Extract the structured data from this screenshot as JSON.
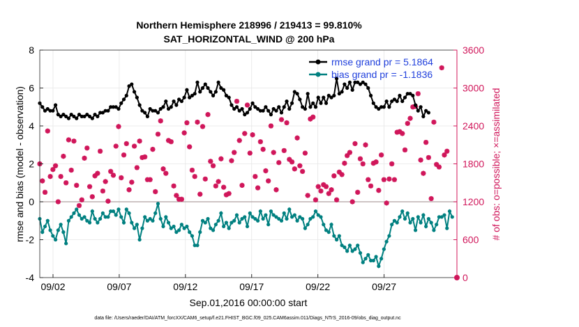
{
  "chart_data": {
    "type": "line",
    "title_line1": "Northern Hemisphere 218996 / 219413 = 99.810%",
    "title_line2": "SAT_HORIZONTAL_WIND @ 200 hPa",
    "xlabel": "Sep.01,2016 00:00:00 start",
    "ylabel_left": "rmse and bias (model - observation)",
    "ylabel_right": "# of obs: o=possible; ×=assimilated",
    "footer": "data file: /Users/raeder/DAI/ATM_forcXX/CAM6_setup/f.e21.FHIST_BGC.f09_025.CAM6assim.011/Diags_NTrS_2016-09/obs_diag_output.nc",
    "xlim": [
      0,
      31.5
    ],
    "ylim_left": [
      -4,
      8
    ],
    "ylim_right": [
      0,
      3600
    ],
    "xticks": [
      1,
      6,
      11,
      16,
      21,
      26
    ],
    "xtick_labels": [
      "09/02",
      "09/07",
      "09/12",
      "09/17",
      "09/22",
      "09/27"
    ],
    "yticks_left": [
      -4,
      -2,
      0,
      2,
      4,
      6,
      8
    ],
    "ytick_labels_left": [
      "-4",
      "-2",
      "0",
      "2",
      "4",
      "6",
      "8"
    ],
    "yticks_right": [
      0,
      600,
      1200,
      1800,
      2400,
      3000,
      3600
    ],
    "ytick_labels_right": [
      "0",
      "600",
      "1200",
      "1800",
      "2400",
      "3000",
      "3600"
    ],
    "colors": {
      "rmse": "#000000",
      "bias": "#008080",
      "obs": "#d0165a",
      "zero": "#b0a0a0",
      "legend_text": "#1f3fdc"
    },
    "series": [
      {
        "name": "rmse grand pr = 5.1864",
        "axis": "left",
        "values": [
          5.2,
          5.0,
          4.8,
          4.9,
          4.8,
          4.8,
          5.1,
          4.6,
          4.5,
          4.6,
          4.5,
          4.4,
          4.6,
          4.5,
          4.4,
          4.6,
          4.5,
          4.5,
          4.6,
          4.5,
          4.4,
          4.6,
          4.5,
          4.7,
          4.7,
          4.8,
          4.8,
          5.0,
          5.0,
          5.0,
          4.9,
          5.2,
          5.4,
          5.6,
          6.1,
          6.2,
          5.8,
          5.5,
          5.1,
          4.8,
          4.7,
          4.5,
          4.9,
          4.8,
          4.8,
          4.7,
          4.9,
          5.0,
          5.3,
          4.9,
          5.0,
          5.3,
          5.1,
          5.4,
          5.3,
          5.5,
          5.9,
          5.5,
          5.6,
          5.7,
          6.3,
          5.8,
          6.0,
          6.2,
          6.0,
          5.8,
          5.6,
          5.8,
          6.3,
          6.0,
          5.9,
          5.6,
          5.5,
          5.1,
          4.9,
          5.0,
          4.8,
          4.9,
          4.6,
          4.7,
          4.9,
          5.2,
          5.0,
          4.9,
          4.8,
          4.8,
          5.0,
          4.8,
          4.6,
          4.9,
          4.8,
          5.0,
          4.7,
          5.0,
          5.3,
          4.9,
          5.2,
          5.8,
          5.7,
          5.4,
          5.0,
          4.9,
          5.7,
          5.0,
          5.2,
          5.0,
          5.5,
          5.2,
          5.5,
          5.2,
          5.6,
          5.5,
          5.6,
          6.5,
          5.7,
          5.8,
          6.2,
          6.0,
          6.3,
          5.9,
          6.3,
          6.3,
          6.2,
          6.3,
          6.2,
          6.0,
          5.6,
          5.2,
          5.0,
          4.9,
          5.0,
          5.0,
          5.3,
          5.0,
          5.3,
          5.4,
          5.3,
          5.6,
          5.3,
          5.5,
          5.7,
          5.7,
          5.6,
          5.1,
          4.8,
          5.0,
          4.5,
          4.8,
          4.7
        ]
      },
      {
        "name": "bias grand pr = -1.1836",
        "axis": "left",
        "values": [
          -0.9,
          -1.6,
          -1.3,
          -1.0,
          -1.5,
          -1.8,
          -2.0,
          -1.5,
          -1.2,
          -1.6,
          -2.2,
          -1.0,
          -0.8,
          -0.6,
          -0.4,
          -0.7,
          -0.9,
          -0.8,
          -1.0,
          -1.1,
          -0.5,
          -0.9,
          -1.1,
          -0.9,
          -0.6,
          -0.8,
          -0.8,
          -0.5,
          -0.5,
          -0.7,
          -0.4,
          -0.8,
          -1.1,
          -0.4,
          -0.6,
          -1.1,
          -1.4,
          -1.2,
          -2.0,
          -1.4,
          -0.8,
          -1.0,
          -0.9,
          -1.0,
          -0.6,
          -0.1,
          -0.9,
          -1.3,
          -0.8,
          -1.1,
          -1.4,
          -1.3,
          -1.6,
          -1.5,
          -1.2,
          -1.4,
          -1.3,
          -1.6,
          -1.8,
          -2.3,
          -2.3,
          -1.6,
          -1.0,
          -1.1,
          -0.9,
          -1.4,
          -1.5,
          -1.2,
          -1.0,
          -0.6,
          -1.3,
          -1.1,
          -1.4,
          -1.1,
          -1.0,
          -0.7,
          -1.1,
          -0.9,
          -0.8,
          -1.3,
          -0.6,
          -0.8,
          -0.9,
          -1.0,
          -0.5,
          -0.9,
          -0.7,
          -1.2,
          -0.5,
          -0.7,
          -0.8,
          -0.9,
          -1.0,
          -0.6,
          -0.9,
          -0.4,
          -0.8,
          -0.7,
          -1.0,
          -0.8,
          -0.9,
          -1.4,
          -1.2,
          -0.9,
          -0.8,
          -0.5,
          -0.7,
          -0.8,
          -1.2,
          -1.5,
          -1.6,
          -1.2,
          -1.8,
          -2.0,
          -1.8,
          -2.3,
          -2.4,
          -2.6,
          -2.3,
          -2.6,
          -2.5,
          -2.3,
          -2.7,
          -3.2,
          -3.0,
          -2.8,
          -3.1,
          -3.1,
          -2.9,
          -3.4,
          -3.0,
          -2.5,
          -2.1,
          -1.8,
          -1.2,
          -1.0,
          -1.1,
          -0.8,
          -0.5,
          -0.9,
          -0.6,
          -1.1,
          -0.9,
          -1.5,
          -0.8,
          -1.1,
          -0.7,
          -1.3,
          -0.9,
          -1.1,
          -1.5,
          -1.2,
          -0.8,
          -0.8,
          -0.7,
          -1.4,
          -0.5,
          -0.8
        ]
      },
      {
        "name": "obs assimilated",
        "axis": "right",
        "values": [
          1800,
          1530,
          1350,
          2320,
          1600,
          1710,
          1770,
          1200,
          1600,
          1920,
          1500,
          2180,
          1700,
          2160,
          1460,
          1140,
          1230,
          1890,
          2050,
          1440,
          1280,
          1610,
          1650,
          2000,
          1370,
          1520,
          1210,
          1680,
          1620,
          2080,
          2390,
          1580,
          1940,
          2120,
          1390,
          1510,
          2080,
          1740,
          2160,
          1900,
          1910,
          1550,
          1550,
          2030,
          1360,
          2270,
          2480,
          1720,
          1650,
          2170,
          2150,
          1450,
          1300,
          1240,
          1240,
          2290,
          2450,
          2070,
          1700,
          1600,
          2460,
          1320,
          2390,
          1560,
          2580,
          1840,
          1770,
          1450,
          1520,
          1880,
          1430,
          1310,
          1330,
          1850,
          1980,
          2790,
          2170,
          1460,
          2280,
          2730,
          1970,
          2260,
          1600,
          1420,
          2150,
          2030,
          1690,
          1530,
          2400,
          1980,
          1390,
          1820,
          2500,
          2010,
          2450,
          1870,
          1830,
          1720,
          2210,
          1770,
          1680,
          1970,
          1300,
          2510,
          2540,
          1230,
          1440,
          1370,
          1470,
          1440,
          1330,
          1390,
          1610,
          1230,
          1670,
          1630,
          1810,
          1930,
          1980,
          1200,
          2120,
          1350,
          1880,
          1800,
          2100,
          1550,
          1450,
          1810,
          1830,
          1380,
          1940,
          1550,
          1180,
          1560,
          1800,
          1550,
          2300,
          2310,
          2280,
          2020,
          2440,
          2520,
          2700,
          2710,
          2910,
          1860,
          1650,
          2140,
          1900,
          1250,
          2460,
          1790,
          1750,
          3320,
          1940,
          2000
        ]
      },
      {
        "name": "obs possible",
        "axis": "right",
        "x": 31.5,
        "values": [
          0
        ]
      }
    ]
  }
}
